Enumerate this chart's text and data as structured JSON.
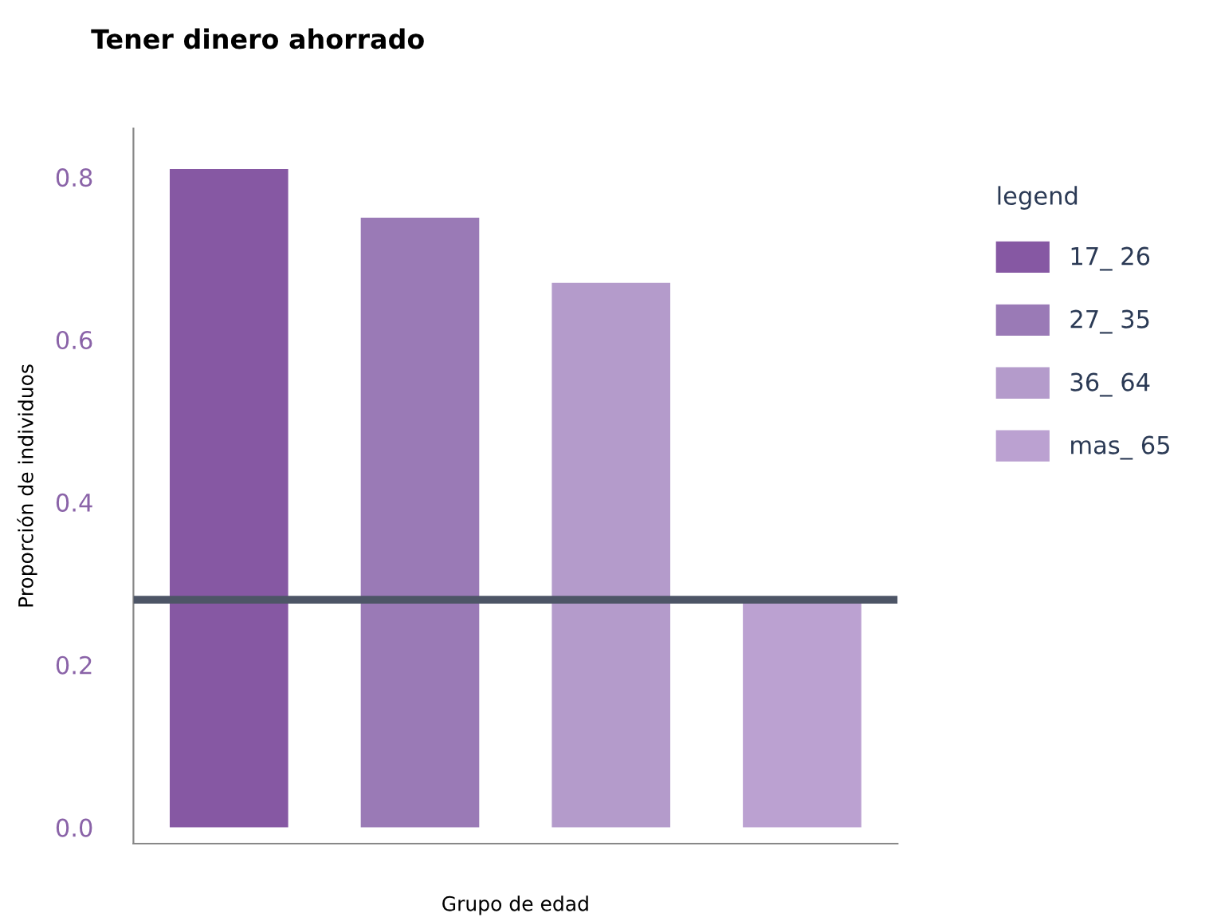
{
  "chart_data": {
    "type": "bar",
    "title": "Tener dinero ahorrado",
    "xlabel": "Grupo de edad",
    "ylabel": "Proporción de individuos",
    "legend_title": "legend",
    "categories": [
      null,
      null,
      null,
      null
    ],
    "series": [
      {
        "name": "17_ 26",
        "color": "#8658a3",
        "values": [
          0.81,
          null,
          null,
          null
        ]
      },
      {
        "name": "27_ 35",
        "color": "#9a7ab6",
        "values": [
          null,
          0.75,
          null,
          null
        ]
      },
      {
        "name": "36_ 64",
        "color": "#b49bcb",
        "values": [
          null,
          null,
          0.67,
          null
        ]
      },
      {
        "name": "mas_ 65",
        "color": "#bba1d1",
        "values": [
          null,
          null,
          null,
          0.28
        ]
      }
    ],
    "ylim": [
      -0.02,
      0.86
    ],
    "yticks": [
      {
        "value": 0,
        "label": "0.0"
      },
      0.2,
      0.4,
      0.6,
      0.8
    ],
    "ref_lines": [
      {
        "axis": "y",
        "value": 0.28,
        "color": "#4d5566",
        "line_style": "solid"
      }
    ],
    "grid": false,
    "legend": "right"
  }
}
